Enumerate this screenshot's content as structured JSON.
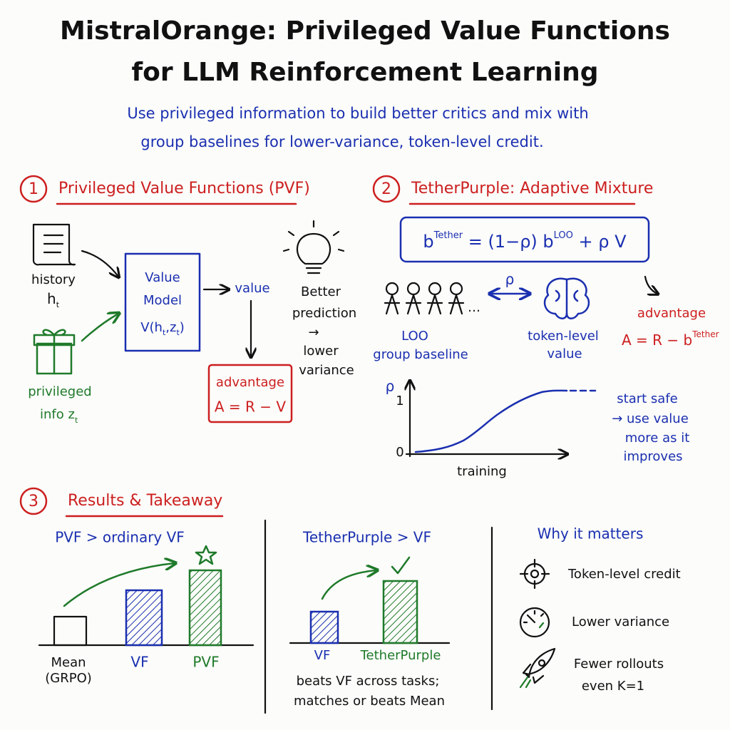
{
  "header": {
    "title_line1": "MistralOrange: Privileged Value Functions",
    "title_line2": "for LLM Reinforcement Learning",
    "subtitle_line1": "Use privileged information to build better critics and mix with",
    "subtitle_line2": "group baselines for lower-variance, token-level credit."
  },
  "section1": {
    "number": "1",
    "title": "Privileged Value Functions (PVF)",
    "history": "history",
    "history_var": "h",
    "history_sub": "t",
    "privileged": "privileged",
    "info": "info z",
    "info_sub": "t",
    "box_line1": "Value",
    "box_line2": "Model",
    "box_formula_a": "V(h",
    "box_formula_sub1": "t",
    "box_formula_b": ",z",
    "box_formula_sub2": "t",
    "box_formula_c": ")",
    "value": "value",
    "advantage": "advantage",
    "advantage_formula": "A = R − V",
    "note_line1": "Better",
    "note_line2": "prediction",
    "note_line3": "→",
    "note_line4": "lower",
    "note_line5": "variance"
  },
  "section2": {
    "number": "2",
    "title": "TetherPurple: Adaptive Mixture",
    "formula_a": "b",
    "formula_sup1": "Tether",
    "formula_b": " = (1−ρ) b",
    "formula_sup2": "LOO",
    "formula_c": " + ρ V",
    "mix_symbol": "ρ",
    "dots": "…",
    "loo_line1": "LOO",
    "loo_line2": "group baseline",
    "token_line1": "token-level",
    "token_line2": "value",
    "advantage": "advantage",
    "advantage_formula": "A = R − b",
    "advantage_sup": "Tether",
    "chart_y_label": "ρ",
    "chart_y_top": "1",
    "chart_y_bottom": "0",
    "chart_x_label": "training",
    "note_line1": "start safe",
    "note_line2": "→ use value",
    "note_line3": "more as it",
    "note_line4": "improves"
  },
  "section3": {
    "number": "3",
    "title": "Results & Takeaway",
    "panel1": {
      "heading": "PVF > ordinary VF",
      "label_mean_line1": "Mean",
      "label_mean_line2": "(GRPO)",
      "label_vf": "VF",
      "label_pvf": "PVF"
    },
    "panel2": {
      "heading": "TetherPurple > VF",
      "label_vf": "VF",
      "label_tether": "TetherPurple",
      "note_line1": "beats VF across tasks;",
      "note_line2": "matches or beats Mean"
    },
    "panel3": {
      "heading": "Why it matters",
      "item1": "Token-level credit",
      "item2": "Lower variance",
      "item3_line1": "Fewer rollouts",
      "item3_line2": "even K=1"
    }
  }
}
